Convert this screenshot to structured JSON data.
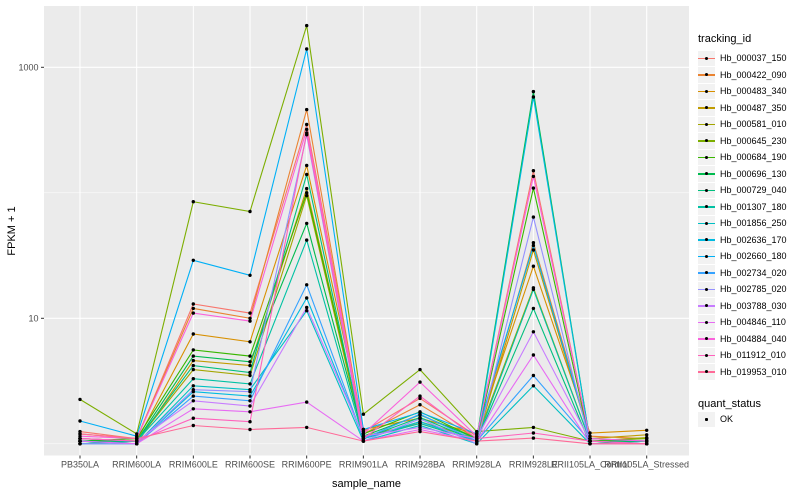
{
  "chart_data": {
    "type": "line",
    "title": "",
    "xlabel": "sample_name",
    "ylabel": "FPKM + 1",
    "y_scale": "log10",
    "y_tick_labels": [
      "1000",
      "10"
    ],
    "y_tick_values": [
      1000,
      10
    ],
    "y_minor_values": [
      100,
      1
    ],
    "ylim_log": [
      0.9,
      3000
    ],
    "grid": "on",
    "legend_position": "right",
    "legend_title": "tracking_id",
    "quant_legend": {
      "title": "quant_status",
      "items": [
        "OK"
      ]
    },
    "panel_color": "#EBEBEB",
    "grid_color": "#FFFFFF",
    "tick_color": "#333333",
    "tick_label_color": "#4D4D4D",
    "point_color": "#000000",
    "legend_key_color": "#F2F2F2",
    "categories": [
      "PB350LA",
      "RRIM600LA",
      "RRIM600LE",
      "RRIM600SE",
      "RRIM600PE",
      "RRIM901LA",
      "RRIM928BA",
      "RRIM928LA",
      "RRIM928LE",
      "RRII105LA_Control",
      "RRII105LA_Stressed"
    ],
    "series": [
      {
        "name": "Hb_000037_150",
        "color": "#F8766D",
        "values": [
          1.25,
          1.1,
          13,
          11,
          350,
          1.25,
          2.3,
          1.15,
          150,
          1.1,
          1.05
        ]
      },
      {
        "name": "Hb_000422_090",
        "color": "#EA8331",
        "values": [
          1.2,
          1.1,
          12,
          10,
          460,
          1.2,
          2.05,
          1.1,
          40,
          1.15,
          1.1
        ]
      },
      {
        "name": "Hb_000483_340",
        "color": "#D89000",
        "values": [
          1.1,
          1.05,
          7.5,
          6.5,
          165,
          1.3,
          1.6,
          1.2,
          26,
          1.22,
          1.28
        ]
      },
      {
        "name": "Hb_000487_350",
        "color": "#C09B00",
        "values": [
          1.05,
          1.0,
          4.6,
          4.2,
          108,
          1.15,
          1.45,
          1.05,
          35,
          1.1,
          1.18
        ]
      },
      {
        "name": "Hb_000581_010",
        "color": "#A3A500",
        "values": [
          1.1,
          1.05,
          3.9,
          3.5,
          95,
          1.1,
          1.5,
          1.1,
          17.5,
          1.05,
          1.12
        ]
      },
      {
        "name": "Hb_000645_230",
        "color": "#7CAE00",
        "values": [
          2.26,
          1.2,
          85,
          71,
          2150,
          1.72,
          3.9,
          1.25,
          1.35,
          1.05,
          1.1
        ]
      },
      {
        "name": "Hb_000684_190",
        "color": "#39B600",
        "values": [
          1.05,
          1.1,
          5.6,
          5.0,
          100,
          1.2,
          1.8,
          1.1,
          109,
          1.05,
          1.05
        ]
      },
      {
        "name": "Hb_000696_130",
        "color": "#00BB4E",
        "values": [
          1.05,
          1.05,
          5.0,
          4.5,
          57,
          1.15,
          1.7,
          1.1,
          640,
          1.05,
          1.05
        ]
      },
      {
        "name": "Hb_000729_040",
        "color": "#00BF7D",
        "values": [
          1.0,
          1.05,
          4.2,
          3.7,
          140,
          1.1,
          1.62,
          1.05,
          12,
          1.0,
          1.05
        ]
      },
      {
        "name": "Hb_001307_180",
        "color": "#00C1A3",
        "values": [
          1.0,
          1.05,
          3.3,
          3.0,
          42,
          1.1,
          1.45,
          1.05,
          17,
          1.05,
          1.0
        ]
      },
      {
        "name": "Hb_001856_250",
        "color": "#00BFC4",
        "values": [
          1.0,
          1.0,
          2.9,
          2.7,
          11.5,
          1.05,
          1.4,
          1.0,
          2.9,
          1.0,
          1.0
        ]
      },
      {
        "name": "Hb_002636_170",
        "color": "#00BAE0",
        "values": [
          1.05,
          1.0,
          2.6,
          2.4,
          14.5,
          1.1,
          1.5,
          1.05,
          580,
          1.05,
          1.0
        ]
      },
      {
        "name": "Hb_002660_180",
        "color": "#00B0F6",
        "values": [
          1.52,
          1.15,
          29,
          22,
          1400,
          1.3,
          1.78,
          1.2,
          38,
          1.1,
          1.05
        ]
      },
      {
        "name": "Hb_002734_020",
        "color": "#35A2FF",
        "values": [
          1.05,
          1.0,
          2.4,
          2.2,
          18.5,
          1.1,
          1.72,
          1.05,
          3.5,
          1.05,
          1.0
        ]
      },
      {
        "name": "Hb_002785_020",
        "color": "#9590FF",
        "values": [
          1.0,
          1.0,
          2.7,
          2.6,
          290,
          1.05,
          1.58,
          1.0,
          64,
          1.0,
          1.0
        ]
      },
      {
        "name": "Hb_003788_030",
        "color": "#C77CFF",
        "values": [
          1.1,
          1.05,
          2.2,
          2.0,
          12.2,
          1.15,
          1.35,
          1.1,
          7.8,
          1.05,
          1.0
        ]
      },
      {
        "name": "Hb_004846_110",
        "color": "#E76BF3",
        "values": [
          1.05,
          1.0,
          1.9,
          1.8,
          2.15,
          1.05,
          1.3,
          1.05,
          5.1,
          1.0,
          1.0
        ]
      },
      {
        "name": "Hb_004884_040",
        "color": "#FA62DB",
        "values": [
          1.15,
          1.1,
          11,
          9.5,
          320,
          1.2,
          3.1,
          1.15,
          135,
          1.1,
          1.05
        ]
      },
      {
        "name": "Hb_011912_010",
        "color": "#FF62BC",
        "values": [
          1.1,
          1.05,
          1.6,
          1.5,
          300,
          1.1,
          2.4,
          1.1,
          1.22,
          1.05,
          1.0
        ]
      },
      {
        "name": "Hb_019953_010",
        "color": "#FF6A98",
        "values": [
          1.2,
          1.1,
          1.4,
          1.3,
          1.35,
          1.05,
          1.25,
          1.05,
          1.11,
          1.0,
          1.0
        ]
      }
    ]
  }
}
